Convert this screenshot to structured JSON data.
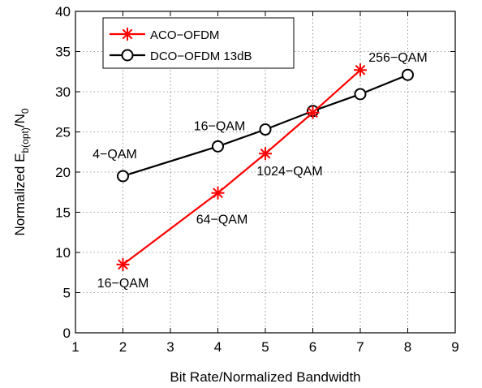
{
  "chart_data": {
    "type": "line",
    "title": "",
    "xlabel": "Bit Rate/Normalized Bandwidth",
    "ylabel_main": "Normalized E",
    "ylabel_sub": "b(opt)",
    "ylabel_tail": "/N",
    "ylabel_sub2": "0",
    "xlim": [
      1,
      9
    ],
    "ylim": [
      0,
      40
    ],
    "xticks": [
      1,
      2,
      3,
      4,
      5,
      6,
      7,
      8,
      9
    ],
    "yticks": [
      0,
      5,
      10,
      15,
      20,
      25,
      30,
      35,
      40
    ],
    "grid": true,
    "legend_position": "top-left",
    "series": [
      {
        "name": "ACO−OFDM",
        "color": "#ff0000",
        "marker": "asterisk",
        "x": [
          2,
          4,
          5,
          6,
          7
        ],
        "y": [
          8.5,
          17.4,
          22.3,
          27.4,
          32.7
        ]
      },
      {
        "name": "DCO−OFDM 13dB",
        "color": "#000000",
        "marker": "circle",
        "x": [
          2,
          4,
          5,
          6,
          7,
          8
        ],
        "y": [
          19.5,
          23.2,
          25.3,
          27.6,
          29.7,
          32.1
        ]
      }
    ],
    "annotations": [
      {
        "text": "16−QAM",
        "x": 2,
        "y": 8.5,
        "pos": "below"
      },
      {
        "text": "64−QAM",
        "x": 4,
        "y": 17.4,
        "pos": "below-right"
      },
      {
        "text": "1024−QAM",
        "x": 5,
        "y": 22.3,
        "pos": "below-right"
      },
      {
        "text": "4−QAM",
        "x": 2,
        "y": 19.5,
        "pos": "above"
      },
      {
        "text": "16−QAM",
        "x": 4,
        "y": 23.2,
        "pos": "above"
      },
      {
        "text": "256−QAM",
        "x": 8,
        "y": 32.1,
        "pos": "above"
      }
    ]
  }
}
